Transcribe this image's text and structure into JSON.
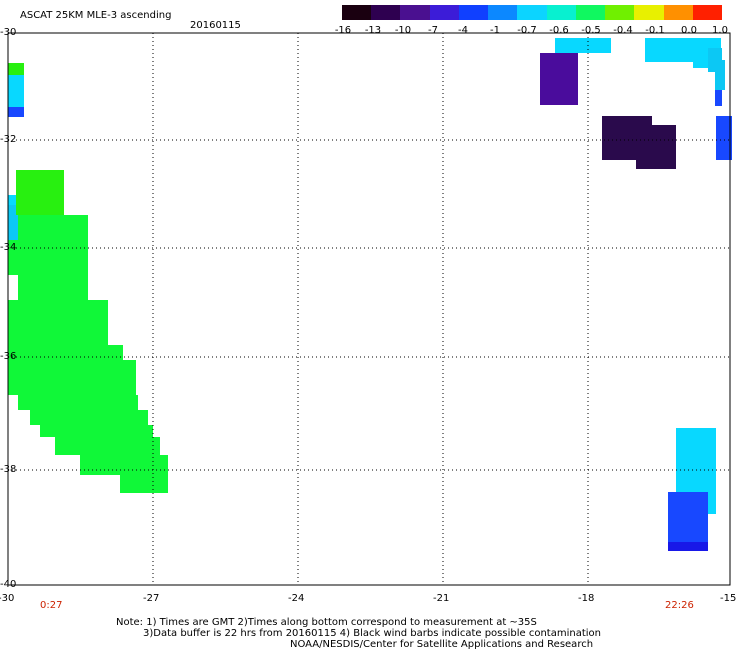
{
  "title": "ASCAT 25KM MLE-3 ascending",
  "date": "20160115",
  "colorbar": {
    "ticks": [
      "-16",
      "-13",
      "-10",
      "-7",
      "-4",
      "-1",
      "-0.7",
      "-0.6",
      "-0.5",
      "-0.4",
      "-0.1",
      "0.0",
      "1.0"
    ],
    "colors": [
      "#1a0010",
      "#2e0050",
      "#4a1090",
      "#3c1cd8",
      "#1040ff",
      "#0c88ff",
      "#0cd4ff",
      "#08f0d0",
      "#10f860",
      "#70f000",
      "#e8f000",
      "#ff9000",
      "#ff2000"
    ]
  },
  "lon_labels": [
    "-30",
    "-27",
    "-24",
    "-21",
    "-18",
    "-15"
  ],
  "lat_labels": [
    "-30",
    "-32",
    "-34",
    "-36",
    "-38",
    "-40"
  ],
  "time_start": "0:27",
  "time_end": "22:26",
  "notes": {
    "line1": "Note: 1) Times are GMT 2)Times along bottom correspond to measurement at ~35S",
    "line2": "3)Data buffer is 22 hrs from 20160115 4) Black wind barbs indicate possible contamination",
    "line3": "NOAA/NESDIS/Center for Satellite Applications and Research"
  }
}
